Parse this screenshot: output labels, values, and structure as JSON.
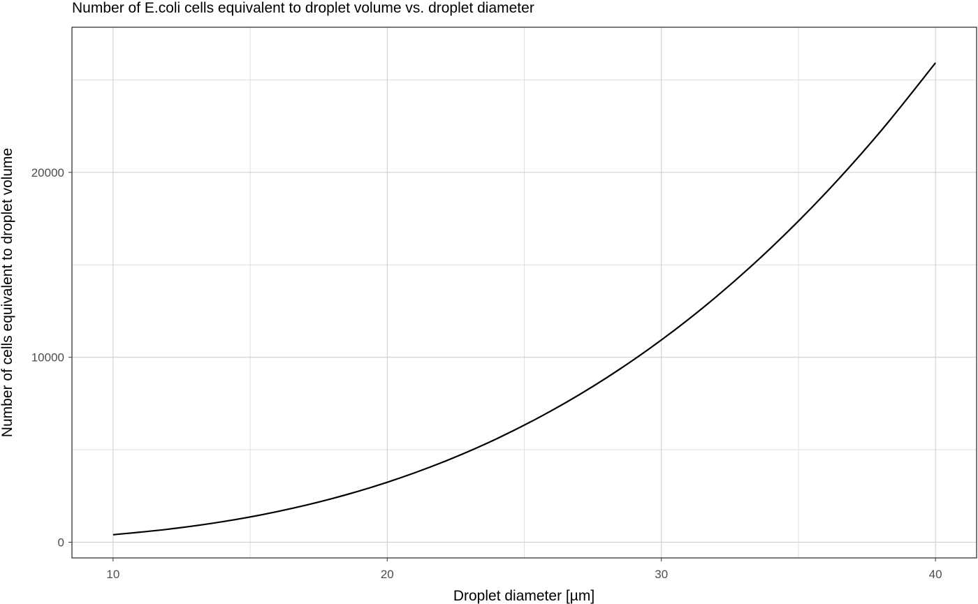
{
  "chart_data": {
    "type": "line",
    "title": "Number of E.coli cells equivalent to droplet volume vs. droplet diameter",
    "xlabel": "Droplet diameter [µm]",
    "ylabel": "Number of cells equivalent to droplet volume",
    "xlim": [
      8.5,
      41.5
    ],
    "ylim": [
      -850,
      27850
    ],
    "x_ticks": [
      10,
      20,
      30,
      40
    ],
    "y_ticks": [
      0,
      10000,
      20000
    ],
    "x_tick_labels": [
      "10",
      "20",
      "30",
      "40"
    ],
    "y_tick_labels": [
      "0",
      "10000",
      "20000"
    ],
    "x_minor": [
      15,
      25,
      35
    ],
    "y_minor": [
      5000,
      15000,
      25000
    ],
    "grid": true,
    "line_color": "#000000",
    "x": [
      10,
      12,
      14,
      16,
      18,
      20,
      22,
      24,
      26,
      28,
      30,
      32,
      34,
      36,
      38,
      40
    ],
    "y": [
      405,
      700,
      1111,
      1659,
      2362,
      3240,
      4313,
      5599,
      7119,
      8892,
      10935,
      13271,
      15919,
      18896,
      22223,
      25920
    ]
  }
}
